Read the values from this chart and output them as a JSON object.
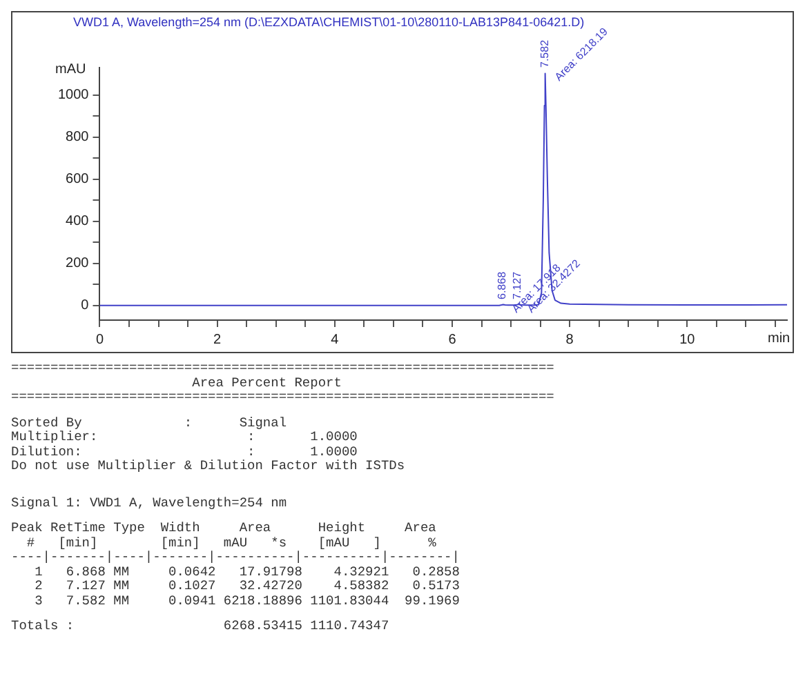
{
  "chart_data": {
    "type": "line",
    "title": "VWD1 A, Wavelength=254 nm (D:\\EZXDATA\\CHEMIST\\01-10\\280110-LAB13P841-06421.D)",
    "xlabel": "min",
    "ylabel": "mAU",
    "x": [
      0,
      2,
      4,
      6,
      6.8,
      6.84,
      6.868,
      6.9,
      6.95,
      7.05,
      7.1,
      7.127,
      7.16,
      7.25,
      7.4,
      7.47,
      7.52,
      7.55,
      7.57,
      7.582,
      7.595,
      7.62,
      7.65,
      7.7,
      7.75,
      7.85,
      8,
      9,
      10,
      11,
      11.7
    ],
    "series": [
      {
        "color": "#4040c8",
        "values": [
          0,
          0,
          0,
          0,
          0,
          2,
          4,
          2,
          1,
          1,
          3,
          5,
          3,
          1,
          1,
          3,
          60,
          500,
          950,
          1102,
          950,
          600,
          250,
          70,
          25,
          10,
          6,
          3,
          2,
          2,
          3
        ]
      }
    ],
    "xlim": [
      0,
      11.7
    ],
    "ylim": [
      -70,
      1130
    ],
    "xticks": [
      0,
      {
        "value": 0.5,
        "label": null
      },
      {
        "value": 1,
        "label": null
      },
      {
        "value": 1.5,
        "label": null
      },
      2,
      {
        "value": 2.5,
        "label": null
      },
      {
        "value": 3,
        "label": null
      },
      {
        "value": 3.5,
        "label": null
      },
      4,
      {
        "value": 4.5,
        "label": null
      },
      {
        "value": 5,
        "label": null
      },
      {
        "value": 5.5,
        "label": null
      },
      6,
      {
        "value": 6.5,
        "label": null
      },
      {
        "value": 7,
        "label": null
      },
      {
        "value": 7.5,
        "label": null
      },
      8,
      {
        "value": 8.5,
        "label": null
      },
      {
        "value": 9,
        "label": null
      },
      {
        "value": 9.5,
        "label": null
      },
      10,
      {
        "value": 10.5,
        "label": null
      },
      {
        "value": 11,
        "label": null
      },
      {
        "value": 11.5,
        "label": null
      }
    ],
    "yticks": [
      0,
      {
        "value": 100,
        "label": null
      },
      200,
      {
        "value": 300,
        "label": null
      },
      400,
      {
        "value": 500,
        "label": null
      },
      600,
      {
        "value": 700,
        "label": null
      },
      800,
      {
        "value": 900,
        "label": null
      },
      1000
    ],
    "grid": false,
    "legend": false,
    "marker": "none",
    "line_style": "solid",
    "annotations": [
      {
        "text": "6.868",
        "x": 6.868,
        "y": 4
      },
      {
        "text": "Area: 17.918",
        "x": 6.868,
        "y": 4
      },
      {
        "text": "7.127",
        "x": 7.127,
        "y": 5
      },
      {
        "text": "Area: 32.4272",
        "x": 7.127,
        "y": 5
      },
      {
        "text": "7.582",
        "x": 7.582,
        "y": 1102
      },
      {
        "text": "Area: 6218.19",
        "x": 7.582,
        "y": 1102
      },
      "=====================================================================",
      "                       Area Percent Report",
      "=====================================================================",
      "Sorted By             :      Signal",
      "Multiplier:                   :       1.0000",
      "Dilution:                     :       1.0000",
      "Do not use Multiplier & Dilution Factor with ISTDs",
      "Signal 1: VWD1 A, Wavelength=254 nm",
      "Peak RetTime Type  Width     Area      Height     Area",
      "  #   [min]        [min]   mAU   *s    [mAU   ]      %",
      "----|-------|----|-------|----------|----------|--------|",
      "   1   6.868 MM     0.0642   17.91798    4.32921   0.2858",
      "   2   7.127 MM     0.1027   32.42720    4.58382   0.5173",
      "   3   7.582 MM     0.0941 6218.18896 1101.83044  99.1969",
      "Totals :                   6268.53415 1110.74347"
    ]
  }
}
